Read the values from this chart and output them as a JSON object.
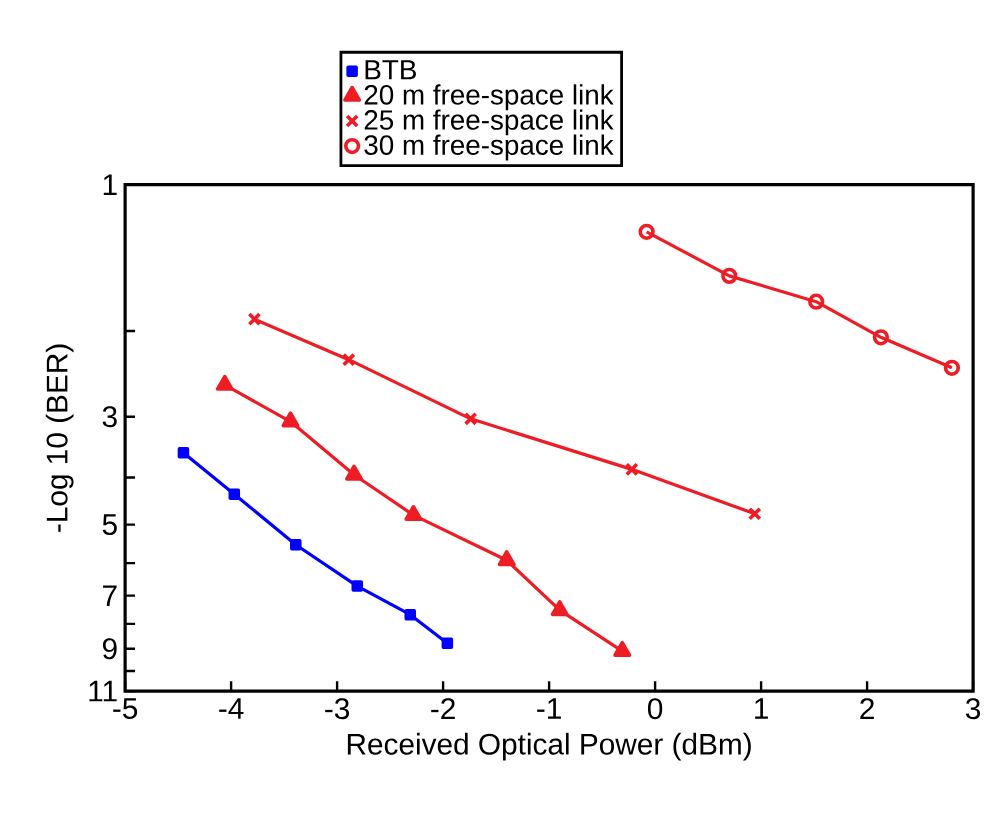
{
  "chart_data": {
    "type": "line",
    "xlabel": "Received Optical Power (dBm)",
    "ylabel": "-Log 10 (BER)",
    "xlim": [
      -5,
      3
    ],
    "xticks": [
      -5,
      -4,
      -3,
      -2,
      -1,
      0,
      1,
      2,
      3
    ],
    "ylim": [
      11,
      1
    ],
    "yticks": [
      1,
      {
        "value": 2,
        "label": null
      },
      3,
      {
        "value": 4,
        "label": null
      },
      5,
      {
        "value": 6,
        "label": null
      },
      7,
      {
        "value": 8,
        "label": null
      },
      9,
      {
        "value": 10,
        "label": null
      },
      11
    ],
    "grid": false,
    "legend": "top",
    "log": "y",
    "series": [
      {
        "name": "BTB",
        "color": "#0000ff",
        "marker": "square",
        "x": [
          -4.45,
          -3.97,
          -3.39,
          -2.81,
          -2.31,
          -1.96
        ],
        "values": [
          3.56,
          4.33,
          5.5,
          6.69,
          7.66,
          8.77
        ]
      },
      {
        "name": "20 m free-space link",
        "color": "#ee1c24",
        "marker": "triangle",
        "x": [
          -4.06,
          -3.44,
          -2.84,
          -2.28,
          -1.4,
          -0.9,
          -0.31
        ],
        "values": [
          2.58,
          3.07,
          3.95,
          4.78,
          5.92,
          7.5,
          9.1
        ]
      },
      {
        "name": "25 m free-space link",
        "color": "#ee1c24",
        "marker": "cross",
        "x": [
          -3.78,
          -2.89,
          -1.74,
          -0.22,
          0.94
        ],
        "values": [
          1.89,
          2.29,
          3.03,
          3.85,
          4.75
        ]
      },
      {
        "name": "30 m free-space link",
        "color": "#ee1c24",
        "marker": "circle",
        "x": [
          -0.08,
          0.7,
          1.52,
          2.13,
          2.8
        ],
        "values": [
          1.25,
          1.54,
          1.74,
          2.06,
          2.38
        ]
      }
    ]
  }
}
